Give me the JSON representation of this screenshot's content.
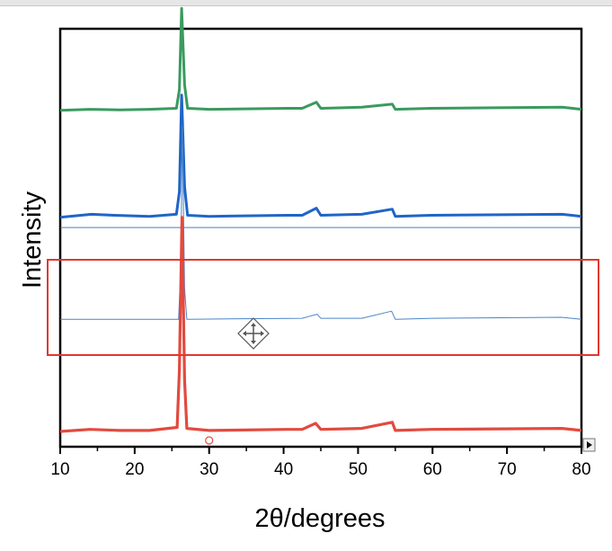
{
  "window": {
    "top_strip": "toolbar-edge"
  },
  "chart_data": {
    "type": "line",
    "title": "",
    "xlabel": "2θ/degrees",
    "ylabel": "Intensity",
    "xlim": [
      10,
      80
    ],
    "x_ticks": [
      10,
      20,
      30,
      40,
      50,
      60,
      70,
      80
    ],
    "y_ticks": [],
    "grid": false,
    "legend": "none",
    "series": [
      {
        "color": "#3a9a5e",
        "baseline": 4.0,
        "points": [
          [
            10,
            0
          ],
          [
            14,
            0.01
          ],
          [
            18,
            0.005
          ],
          [
            22,
            0.01
          ],
          [
            25.6,
            0.02
          ],
          [
            26.0,
            0.2
          ],
          [
            26.3,
            1.0
          ],
          [
            26.7,
            0.25
          ],
          [
            27.1,
            0.02
          ],
          [
            30,
            0.01
          ],
          [
            40.4,
            0.02
          ],
          [
            42.5,
            0.02
          ],
          [
            44.4,
            0.08
          ],
          [
            45,
            0.02
          ],
          [
            50.5,
            0.03
          ],
          [
            54.6,
            0.06
          ],
          [
            55,
            0.01
          ],
          [
            59.8,
            0.02
          ],
          [
            77.4,
            0.03
          ],
          [
            80,
            0.01
          ]
        ]
      },
      {
        "color": "#1f65c8",
        "baseline": 2.95,
        "points": [
          [
            10,
            0
          ],
          [
            14.2,
            0.03
          ],
          [
            17.2,
            0.02
          ],
          [
            22,
            0.01
          ],
          [
            25.6,
            0.03
          ],
          [
            26.0,
            0.25
          ],
          [
            26.3,
            1.2
          ],
          [
            26.7,
            0.3
          ],
          [
            27.1,
            0.02
          ],
          [
            30,
            0.01
          ],
          [
            40.4,
            0.02
          ],
          [
            42.5,
            0.02
          ],
          [
            44.4,
            0.09
          ],
          [
            45,
            0.02
          ],
          [
            50.5,
            0.03
          ],
          [
            54.6,
            0.08
          ],
          [
            55,
            0.01
          ],
          [
            59.8,
            0.02
          ],
          [
            77.4,
            0.03
          ],
          [
            80,
            0.01
          ]
        ]
      },
      {
        "color": "#4a84c8",
        "baseline": 1.95,
        "points": [
          [
            10,
            0
          ],
          [
            22,
            0
          ],
          [
            25.9,
            0
          ],
          [
            26.2,
            0.5
          ],
          [
            26.4,
            1.9
          ],
          [
            26.7,
            0.3
          ],
          [
            27,
            0
          ],
          [
            42.5,
            0.01
          ],
          [
            43.5,
            0.03
          ],
          [
            44.5,
            0.05
          ],
          [
            45,
            0.01
          ],
          [
            50.5,
            0.01
          ],
          [
            54.5,
            0.08
          ],
          [
            55,
            0
          ],
          [
            60,
            0.01
          ],
          [
            77.3,
            0.02
          ],
          [
            80,
            0
          ]
        ]
      },
      {
        "color": "#e24a3f",
        "baseline": 0.85,
        "points": [
          [
            10,
            0
          ],
          [
            14,
            0.02
          ],
          [
            18,
            0.01
          ],
          [
            22,
            0.01
          ],
          [
            25.7,
            0.04
          ],
          [
            26.0,
            0.6
          ],
          [
            26.35,
            2.1
          ],
          [
            26.7,
            0.5
          ],
          [
            27,
            0.03
          ],
          [
            30,
            0.01
          ],
          [
            40.4,
            0.02
          ],
          [
            42.5,
            0.02
          ],
          [
            44.3,
            0.08
          ],
          [
            45,
            0.02
          ],
          [
            50.5,
            0.03
          ],
          [
            54.6,
            0.09
          ],
          [
            55,
            0.01
          ],
          [
            59.8,
            0.02
          ],
          [
            77.4,
            0.03
          ],
          [
            80,
            0.01
          ]
        ]
      }
    ],
    "separator_line_y": 2.85,
    "selection_box": {
      "color": "#e0392f",
      "role": "highlight"
    },
    "ylim": [
      0.7,
      4.8
    ]
  }
}
